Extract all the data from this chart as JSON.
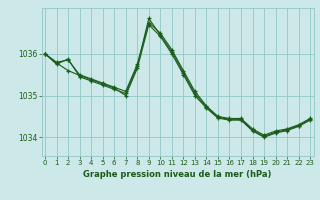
{
  "title": "Graphe pression niveau de la mer (hPa)",
  "bg_color": "#cce8e8",
  "grid_color": "#99cccc",
  "line_color": "#1a5c1a",
  "x_values": [
    0,
    1,
    2,
    3,
    4,
    5,
    6,
    7,
    8,
    9,
    10,
    11,
    12,
    13,
    14,
    15,
    16,
    17,
    18,
    19,
    20,
    21,
    22,
    23
  ],
  "series1": [
    1036.0,
    1035.8,
    1035.85,
    1035.5,
    1035.4,
    1035.3,
    1035.2,
    1035.1,
    1035.75,
    1036.75,
    1036.5,
    1036.1,
    1035.6,
    1035.1,
    1034.75,
    1034.5,
    1034.45,
    1034.45,
    1034.2,
    1034.05,
    1034.15,
    1034.2,
    1034.3,
    1034.45
  ],
  "series2": [
    1036.0,
    1035.75,
    1035.88,
    1035.45,
    1035.35,
    1035.25,
    1035.15,
    1035.05,
    1035.7,
    1036.85,
    1036.45,
    1036.05,
    1035.55,
    1035.05,
    1034.72,
    1034.48,
    1034.43,
    1034.43,
    1034.17,
    1034.02,
    1034.12,
    1034.18,
    1034.28,
    1034.43
  ],
  "series3": [
    1036.0,
    1035.78,
    1035.6,
    1035.48,
    1035.38,
    1035.28,
    1035.18,
    1035.0,
    1035.65,
    1036.7,
    1036.42,
    1036.0,
    1035.5,
    1035.0,
    1034.7,
    1034.46,
    1034.41,
    1034.41,
    1034.15,
    1034.0,
    1034.1,
    1034.16,
    1034.26,
    1034.41
  ],
  "yticks": [
    1034,
    1035,
    1036
  ],
  "ylim": [
    1033.55,
    1037.1
  ],
  "xlim": [
    -0.3,
    23.3
  ],
  "xticks": [
    0,
    1,
    2,
    3,
    4,
    5,
    6,
    7,
    8,
    9,
    10,
    11,
    12,
    13,
    14,
    15,
    16,
    17,
    18,
    19,
    20,
    21,
    22,
    23
  ],
  "tick_fontsize": 5.0,
  "label_fontsize": 6.0
}
